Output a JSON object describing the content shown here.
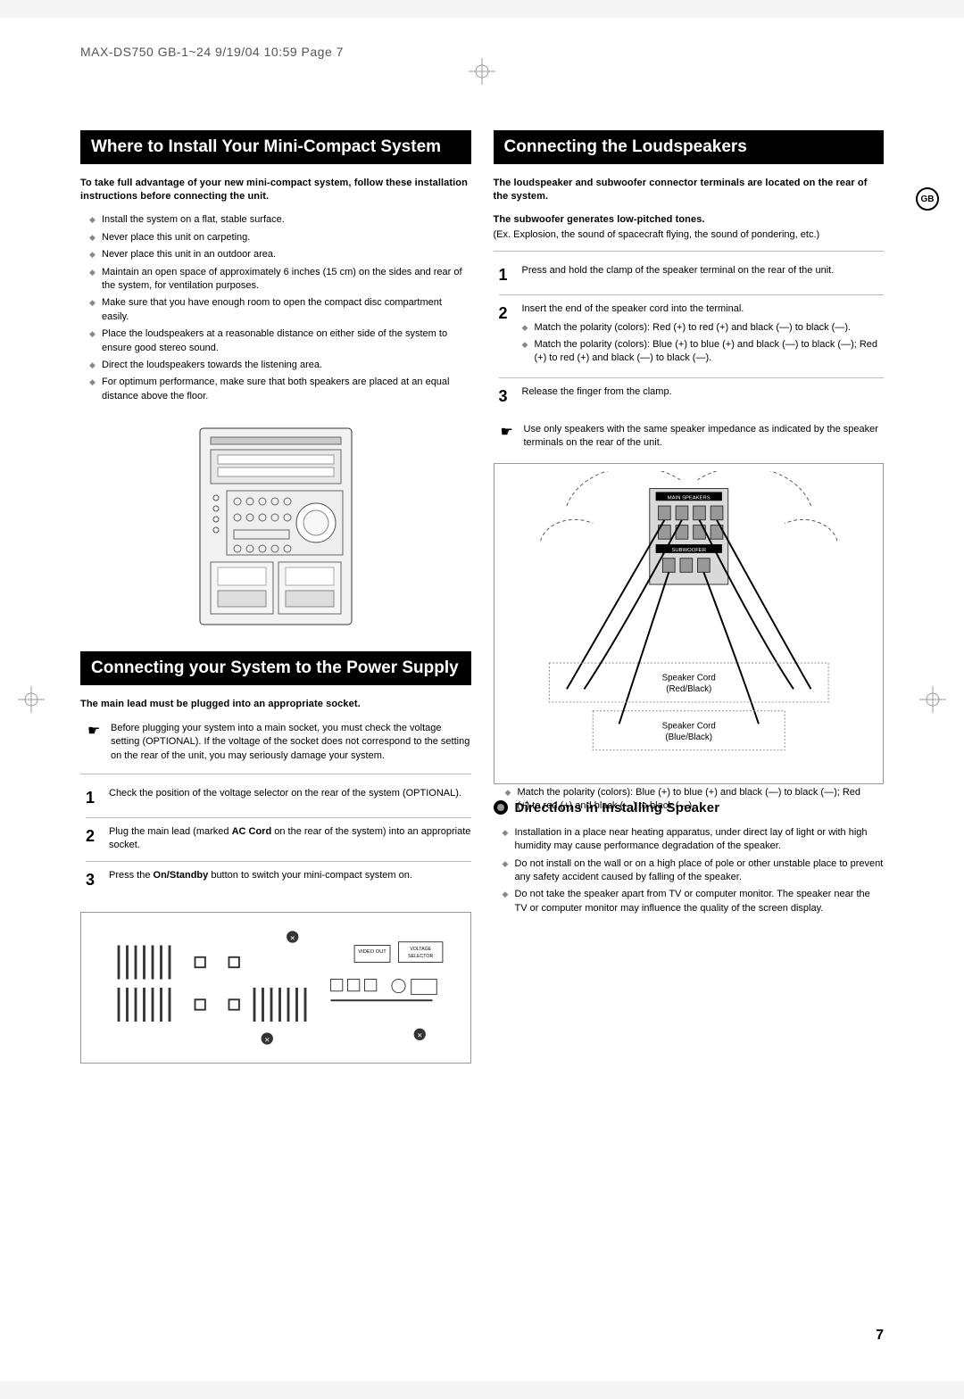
{
  "header": "MAX-DS750 GB-1~24  9/19/04 10:59  Page 7",
  "gbBadge": "GB",
  "pageNumber": "7",
  "left": {
    "title1": "Where to Install Your Mini-Compact System",
    "intro1": "To take full advantage of your new mini-compact system, follow these installation instructions before connecting the unit.",
    "bullets1": [
      "Install the system on a flat, stable surface.",
      "Never place this unit on carpeting.",
      "Never place this unit in an outdoor area.",
      "Maintain an open space of approximately 6 inches (15 cm) on the sides and rear of the system, for ventilation purposes.",
      "Make sure that you have enough room to open the compact disc compartment easily.",
      "Place the loudspeakers at a reasonable distance on either side of the system to ensure good stereo sound.",
      "Direct the loudspeakers towards the listening area.",
      "For optimum performance, make sure that both speakers are placed at an equal distance above the floor."
    ],
    "title2": "Connecting your System to the Power Supply",
    "intro2": "The main lead must be plugged into an appropriate socket.",
    "pointer2": "Before plugging your system into a main socket, you must check the voltage setting (OPTIONAL). If the voltage of the socket does not correspond to the setting on the rear of the unit, you may seriously damage your system.",
    "steps2": [
      {
        "n": "1",
        "t": "Check the position of the voltage selector on the rear of the system (OPTIONAL)."
      },
      {
        "n": "2",
        "t": "Plug the main lead (marked AC Cord on the rear of the system) into an appropriate socket."
      },
      {
        "n": "3",
        "t": "Press the On/Standby button to switch your mini-compact system on."
      }
    ],
    "rearLabels": {
      "video": "VIDEO OUT",
      "voltage": "VOLTAGE SELECTOR"
    }
  },
  "right": {
    "title": "Connecting the Loudspeakers",
    "intro": "The loudspeaker and subwoofer connector terminals are located on the rear of the system.",
    "sub1": "The subwoofer generates low-pitched tones.",
    "sub1note": "(Ex. Explosion, the sound of spacecraft flying, the sound of pondering, etc.)",
    "steps": [
      {
        "n": "1",
        "t": "Press and hold the clamp of the speaker terminal on the rear of the unit."
      },
      {
        "n": "2",
        "t": "Insert the end of the speaker cord into the terminal.",
        "subs": [
          "Match the polarity (colors): Red (+) to red (+) and black (—) to black (—).",
          "Match the polarity (colors): Blue (+) to blue (+) and black (—) to black (—); Red (+) to red (+) and black (—) to black (—)."
        ]
      },
      {
        "n": "3",
        "t": "Release the finger from the clamp."
      }
    ],
    "pointer": "Use only speakers with the same speaker impedance as indicated by the speaker terminals on the rear of the unit.",
    "diagram": {
      "panelLabel": "MAIN SPEAKERS",
      "panelLabel2": "SUBWOOFER",
      "cord1": "Speaker Cord (Red/Black)",
      "cord2": "Speaker Cord (Blue/Black)"
    },
    "diagFoot": [
      "Match the polarity (colors): Blue (+) to blue (+) and black (—) to black (—); Red (+) to red (+) and black (—) to black (—)."
    ],
    "subhead": "Directions in Installing Speaker",
    "bullets2": [
      "Installation in a place near heating apparatus, under direct lay of light or with high humidity may cause performance degradation of the speaker.",
      "Do not install on the wall or on a high place of pole or other unstable place to prevent any safety accident caused by falling of the speaker.",
      "Do not take the speaker apart from TV or computer monitor. The speaker near the TV or computer monitor may influence the quality of the screen display."
    ]
  },
  "colors": {
    "pageBg": "#ffffff",
    "blockBg": "#000000",
    "blockFg": "#ffffff",
    "text": "#000000",
    "muted": "#888888",
    "border": "#999999"
  }
}
